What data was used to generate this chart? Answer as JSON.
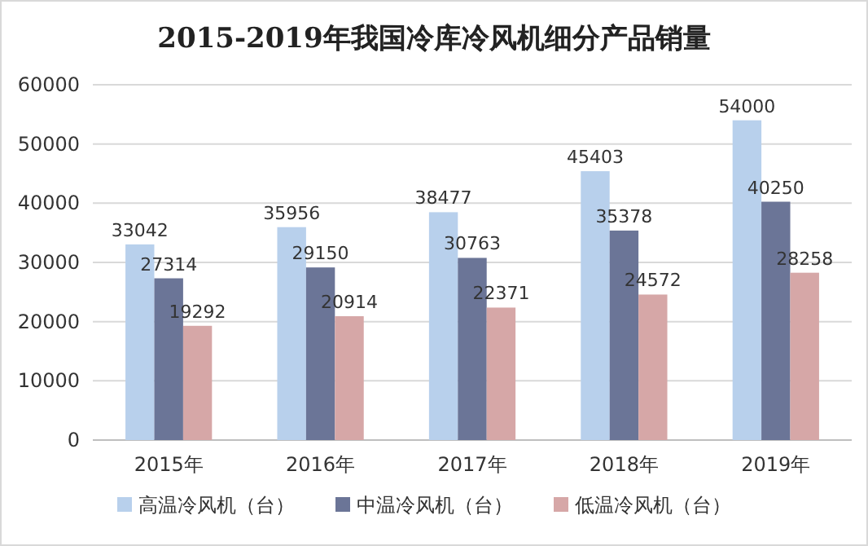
{
  "chart_data": {
    "type": "bar",
    "title": "2015-2019年我国冷库冷风机细分产品销量",
    "categories": [
      "2015年",
      "2016年",
      "2017年",
      "2018年",
      "2019年"
    ],
    "series": [
      {
        "name": "高温冷风机（台）",
        "color": "#b8d0ec",
        "values": [
          33042,
          35956,
          38477,
          45403,
          54000
        ]
      },
      {
        "name": "中温冷风机（台）",
        "color": "#6b7597",
        "values": [
          27314,
          29150,
          30763,
          35378,
          40250
        ]
      },
      {
        "name": "低温冷风机（台）",
        "color": "#d6a7a7",
        "values": [
          19292,
          20914,
          22371,
          24572,
          28258
        ]
      }
    ],
    "ylim": [
      0,
      60000
    ],
    "yticks": [
      0,
      10000,
      20000,
      30000,
      40000,
      50000,
      60000
    ],
    "grid": "y",
    "legend": "bottom",
    "data_labels": true
  }
}
